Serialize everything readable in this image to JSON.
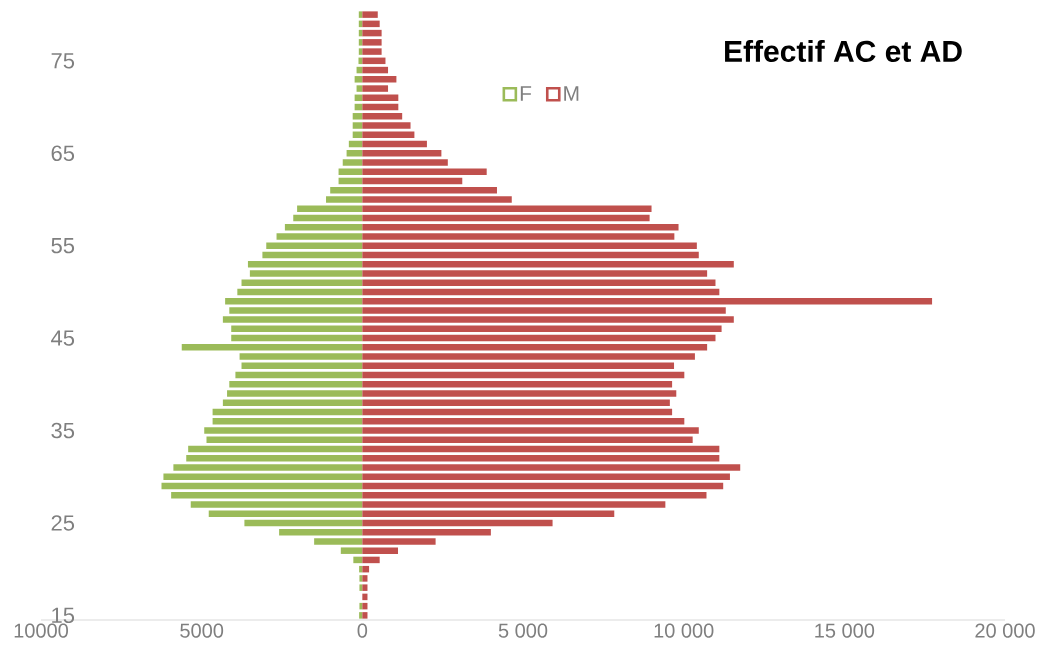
{
  "chart_data": {
    "type": "bar",
    "orientation": "horizontal",
    "stacked": true,
    "title": "Effectif AC et AD",
    "categories": [
      null,
      null,
      null,
      null,
      null,
      "75",
      null,
      null,
      null,
      null,
      null,
      null,
      null,
      null,
      null,
      "65",
      null,
      null,
      null,
      null,
      null,
      null,
      null,
      null,
      null,
      "55",
      null,
      null,
      null,
      null,
      null,
      null,
      null,
      null,
      null,
      "45",
      null,
      null,
      null,
      null,
      null,
      null,
      null,
      null,
      null,
      "35",
      null,
      null,
      null,
      null,
      null,
      null,
      null,
      null,
      null,
      "25",
      null,
      null,
      null,
      null,
      null,
      null,
      null,
      null,
      null,
      "15"
    ],
    "series": [
      {
        "name": "F",
        "color": "#9bbb59",
        "values": [
          -110,
          -110,
          -110,
          -110,
          -110,
          -120,
          -180,
          -240,
          -180,
          -240,
          -240,
          -300,
          -300,
          -300,
          -420,
          -490,
          -610,
          -740,
          -740,
          -1000,
          -1130,
          -2030,
          -2150,
          -2410,
          -2670,
          -2990,
          -3110,
          -3560,
          -3500,
          -3760,
          -3890,
          -4270,
          -4140,
          -4340,
          -4080,
          -4080,
          -5620,
          -3820,
          -3760,
          -3950,
          -4140,
          -4210,
          -4340,
          -4660,
          -4660,
          -4920,
          -4850,
          -5420,
          -5480,
          -5880,
          -6190,
          -6250,
          -5950,
          -5340,
          -4780,
          -3670,
          -2590,
          -1500,
          -670,
          -280,
          -100,
          -90,
          -90,
          null,
          -90,
          -100
        ]
      },
      {
        "name": "M",
        "color": "#c0504d",
        "values": [
          480,
          540,
          600,
          600,
          600,
          720,
          800,
          1060,
          800,
          1120,
          1120,
          1240,
          1500,
          1620,
          2010,
          2460,
          2660,
          3870,
          3110,
          4190,
          4650,
          9000,
          8940,
          9840,
          9710,
          10410,
          10470,
          11560,
          10730,
          10990,
          11110,
          17730,
          11310,
          11560,
          11180,
          10990,
          10730,
          10350,
          9700,
          10020,
          9640,
          9770,
          9570,
          9640,
          10020,
          10470,
          10280,
          11110,
          11110,
          11760,
          11440,
          11230,
          10710,
          9430,
          7840,
          5920,
          4000,
          2280,
          1110,
          540,
          210,
          160,
          160,
          160,
          160,
          160
        ]
      }
    ],
    "xlim": [
      -10000,
      20000
    ],
    "xticks": [
      {
        "value": -10000,
        "label": "10000"
      },
      {
        "value": -5000,
        "label": "5000"
      },
      0,
      {
        "value": 5000,
        "label": "5 000"
      },
      {
        "value": 10000,
        "label": "10 000"
      },
      {
        "value": 15000,
        "label": "15 000"
      },
      {
        "value": 20000,
        "label": "20 000"
      }
    ],
    "legend": "top"
  }
}
